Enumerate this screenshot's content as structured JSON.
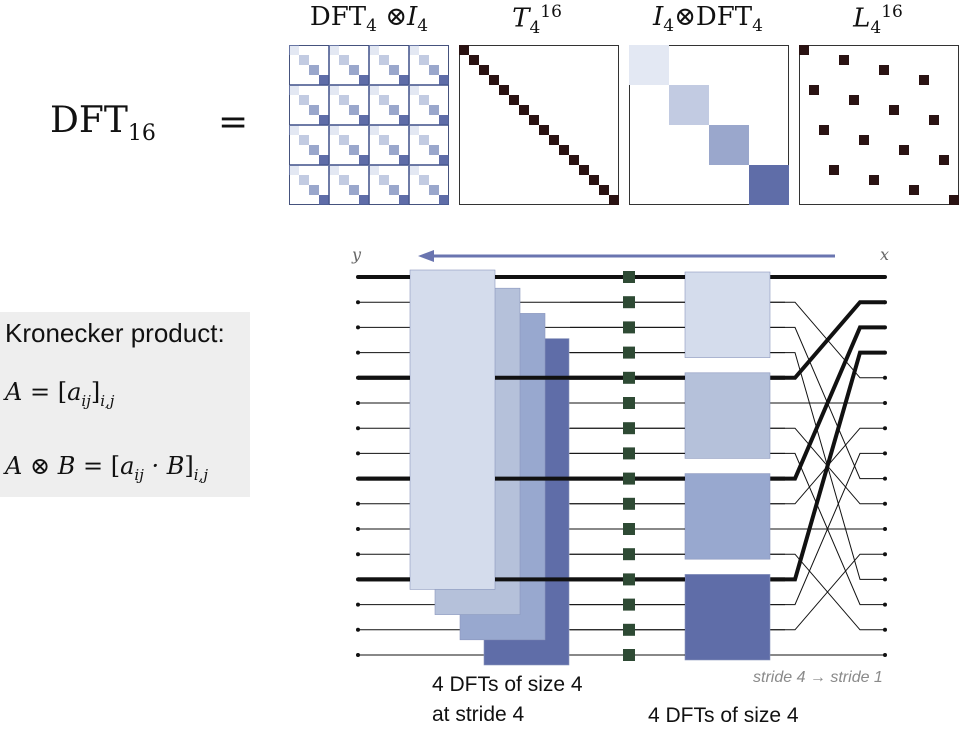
{
  "equation": {
    "lhs_name": "DFT",
    "lhs_sub": "16",
    "equals": "="
  },
  "matrices": [
    {
      "id": "kron-dft-i",
      "label_a": "DFT",
      "label_a_sub": "4",
      "op": "⊗",
      "label_b": "I",
      "label_b_sub": "4",
      "color": "#5f6da8"
    },
    {
      "id": "twiddle",
      "label": "T",
      "sub": "4",
      "sup": "16",
      "color": "#2a1212"
    },
    {
      "id": "kron-i-dft",
      "label_a": "I",
      "label_a_sub": "4",
      "op": "⊗",
      "label_b": "DFT",
      "label_b_sub": "4",
      "color": "#5f6da8"
    },
    {
      "id": "stride-perm",
      "label": "L",
      "sub": "4",
      "sup": "16",
      "color": "#2a1212"
    }
  ],
  "kronecker": {
    "title": "Kronecker product:",
    "line1_lhs": "A",
    "line1_eq": " = [",
    "line1_a": "a",
    "line1_a_sub": "ij",
    "line1_close": "]",
    "line1_sub": "i,j",
    "line2_lhs": "A ⊗ B",
    "line2_eq": " = [",
    "line2_a": "a",
    "line2_a_sub": "ij",
    "line2_dot": " · B",
    "line2_close": "]",
    "line2_sub": "i,j",
    "background": "#eeeeee"
  },
  "dataflow": {
    "output_label": "y",
    "input_label": "x",
    "wire_count": 16,
    "arrow_color": "#6a75b0",
    "block_colors": [
      "#d4dcec",
      "#b5c1da",
      "#98a8cf",
      "#5f6da8"
    ],
    "twiddle_node_color": "#2e4a34"
  },
  "captions": {
    "left_line1": "4 DFTs of size 4",
    "left_line2": "at stride 4",
    "right": "4 DFTs of size 4",
    "stride": "stride 4 → stride 1"
  }
}
